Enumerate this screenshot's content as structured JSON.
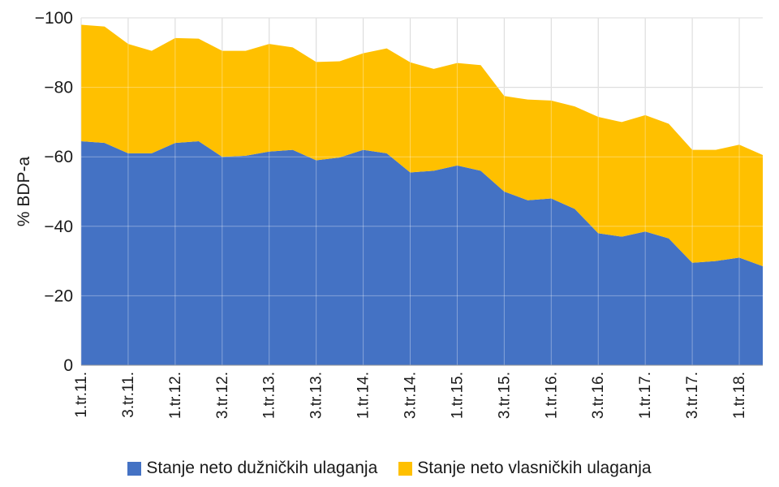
{
  "chart_data": {
    "type": "area",
    "stacked": true,
    "ylabel": "% BDP-a",
    "xlabel": "",
    "ylim": [
      0,
      -100
    ],
    "y_axis_inverted": true,
    "yticks": [
      0,
      -20,
      -40,
      -60,
      -80,
      -100
    ],
    "ytick_labels": [
      "0",
      "−20",
      "−40",
      "−60",
      "−80",
      "−100"
    ],
    "grid": true,
    "legend_position": "bottom",
    "x": [
      "1.tr.11.",
      "2.tr.11.",
      "3.tr.11.",
      "4.tr.11.",
      "1.tr.12.",
      "2.tr.12.",
      "3.tr.12.",
      "4.tr.12.",
      "1.tr.13.",
      "2.tr.13.",
      "3.tr.13.",
      "4.tr.13.",
      "1.tr.14.",
      "2.tr.14.",
      "3.tr.14.",
      "4.tr.14.",
      "1.tr.15.",
      "2.tr.15.",
      "3.tr.15.",
      "4.tr.15.",
      "1.tr.16.",
      "2.tr.16.",
      "3.tr.16.",
      "4.tr.16.",
      "1.tr.17.",
      "2.tr.17.",
      "3.tr.17.",
      "4.tr.17.",
      "1.tr.18.",
      "2.tr.18."
    ],
    "tick_labels": [
      "1.tr.11.",
      "3.tr.11.",
      "1.tr.12.",
      "3.tr.12.",
      "1.tr.13.",
      "3.tr.13.",
      "1.tr.14.",
      "3.tr.14.",
      "1.tr.15.",
      "3.tr.15.",
      "1.tr.16.",
      "3.tr.16.",
      "1.tr.17.",
      "3.tr.17.",
      "1.tr.18."
    ],
    "series": [
      {
        "name": "Stanje neto dužničkih ulaganja",
        "color": "#4472c4",
        "values": [
          -64.5,
          -64,
          -61,
          -61,
          -64,
          -64.5,
          -60,
          -60.3,
          -61.5,
          -62,
          -59,
          -59.8,
          -62,
          -61,
          -55.5,
          -56,
          -57.5,
          -56,
          -50,
          -47.5,
          -48,
          -45,
          -38,
          -37,
          -38.5,
          -36.5,
          -29.5,
          -30,
          -31,
          -28.5
        ]
      },
      {
        "name": "Stanje neto vlasničkih ulaganja",
        "color": "#ffc000",
        "values": [
          -33.5,
          -33.5,
          -31.5,
          -29.5,
          -30.2,
          -29.5,
          -30.5,
          -30.2,
          -31,
          -29.5,
          -28.3,
          -27.7,
          -27.8,
          -30.2,
          -31.7,
          -29.3,
          -29.5,
          -30.4,
          -27.5,
          -29,
          -28.2,
          -29.5,
          -33.5,
          -33,
          -33.5,
          -33,
          -32.5,
          -32,
          -32.5,
          -32
        ]
      }
    ]
  }
}
